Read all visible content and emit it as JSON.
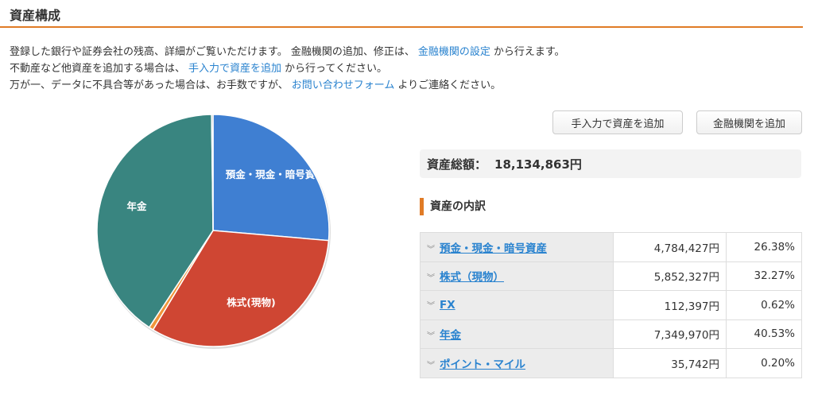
{
  "page_title": "資産構成",
  "intro": {
    "line1": {
      "before": "登録した銀行や証券会社の残高、詳細がご覧いただけます。 金融機関の追加、修正は、",
      "link": "金融機関の設定",
      "after": "から行えます。"
    },
    "line2": {
      "before": "不動産など他資産を追加する場合は、",
      "link": "手入力で資産を追加",
      "after": "から行ってください。"
    },
    "line3": {
      "before": "万が一、データに不具合等があった場合は、お手数ですが、",
      "link": "お問い合わせフォーム",
      "after": "よりご連絡ください。"
    }
  },
  "buttons": {
    "manual_add": "手入力で資産を追加",
    "institution_add": "金融機関を追加"
  },
  "total": {
    "label": "資産総額：",
    "value": "18,134,863円"
  },
  "breakdown_heading": "資産の内訳",
  "breakdown": [
    {
      "name": "預金・現金・暗号資産",
      "amount": "4,784,427円",
      "percent": "26.38%"
    },
    {
      "name": "株式（現物）",
      "amount": "5,852,327円",
      "percent": "32.27%"
    },
    {
      "name": "FX",
      "amount": "112,397円",
      "percent": "0.62%"
    },
    {
      "name": "年金",
      "amount": "7,349,970円",
      "percent": "40.53%"
    },
    {
      "name": "ポイント・マイル",
      "amount": "35,742円",
      "percent": "0.20%"
    }
  ],
  "chart_data": {
    "type": "pie",
    "categories": [
      "預金・現金・暗号資産",
      "株式(現物)",
      "FX",
      "年金",
      "ポイント・マイル"
    ],
    "values": [
      26.38,
      32.27,
      0.62,
      40.53,
      0.2
    ],
    "colors": [
      "#3f7fd2",
      "#cf4633",
      "#f0953a",
      "#398580",
      "#8a8a8a"
    ],
    "slice_labels": [
      "預金・現金・暗号資",
      "株式(現物)",
      "",
      "年金",
      ""
    ]
  }
}
